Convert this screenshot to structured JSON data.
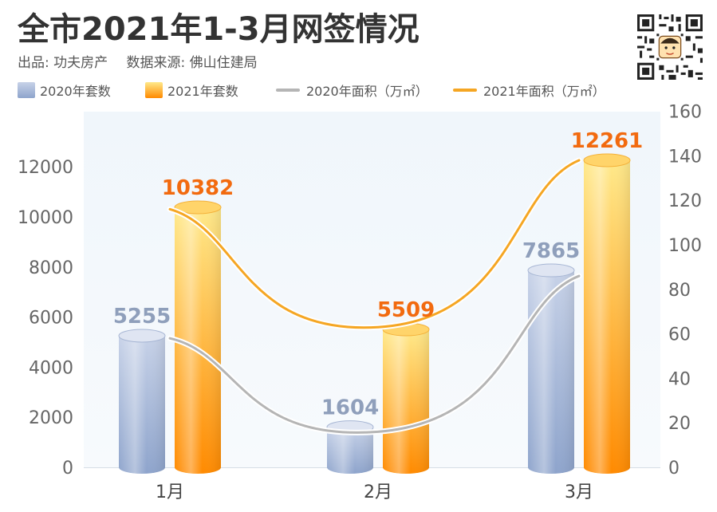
{
  "header": {
    "title": "全市2021年1-3月网签情况",
    "publisher": "出品: 功夫房产",
    "source": "数据来源: 佛山住建局"
  },
  "qr_code": {
    "icon": "qr-code-icon"
  },
  "colors": {
    "bar_2020_top": "#c7d2e8",
    "bar_2020_bottom": "#8ea4cc",
    "bar_2021_top": "#ffe98a",
    "bar_2021_bottom": "#ff8a00",
    "line_2020": "#b5b5b5",
    "line_2021": "#f5a623",
    "label_2020": "#8f9fbb",
    "label_2021": "#f26a0f",
    "axis_text": "#666666"
  },
  "chart_data": {
    "type": "bar",
    "categories": [
      "1月",
      "2月",
      "3月"
    ],
    "series": [
      {
        "name": "2020年套数",
        "kind": "bar",
        "axis": "left",
        "values": [
          5255,
          1604,
          7865
        ]
      },
      {
        "name": "2021年套数",
        "kind": "bar",
        "axis": "left",
        "values": [
          10382,
          5509,
          12261
        ]
      },
      {
        "name": "2020年面积（万㎡）",
        "kind": "line",
        "axis": "right",
        "values": [
          58,
          16,
          86
        ]
      },
      {
        "name": "2021年面积（万㎡）",
        "kind": "line",
        "axis": "right",
        "values": [
          116,
          63,
          138
        ]
      }
    ],
    "left_axis": {
      "ticks": [
        "0",
        "2000",
        "4000",
        "6000",
        "8000",
        "10000",
        "12000"
      ],
      "ylim": [
        0,
        14000
      ]
    },
    "right_axis": {
      "ticks": [
        "0",
        "20",
        "40",
        "60",
        "80",
        "100",
        "120",
        "140",
        "160"
      ],
      "ylim": [
        0,
        160
      ]
    },
    "legend_position": "top-left",
    "grid": false
  }
}
